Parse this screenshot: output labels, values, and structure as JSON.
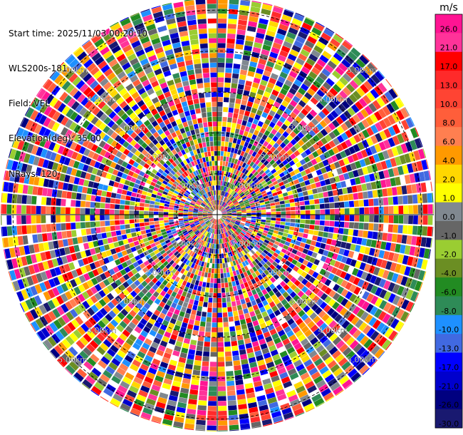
{
  "info": {
    "start_time": "Start time: 2025/11/03 00:20:10",
    "site": "WLS200s-181",
    "field": "Field: VEL",
    "elevation": "Elevation(deg): 35.00",
    "nrays": "NRays: 120"
  },
  "chart_data": {
    "type": "heatmap",
    "projection": "polar-ppi",
    "field": "VEL",
    "units": "m/s",
    "max_range_km": 5.3,
    "range_rings_km": [
      1,
      2,
      3,
      4,
      5
    ],
    "ring_labels": [
      "1.00km",
      "2.00km",
      "3.00km",
      "4.00km",
      "5.00km"
    ],
    "colorbar": {
      "title": "m/s",
      "tick_labels": [
        "26.0",
        "21.0",
        "17.0",
        "13.0",
        "10.0",
        "8.0",
        "6.0",
        "4.0",
        "2.0",
        "1.0",
        "0.0",
        "-1.0",
        "-2.0",
        "-4.0",
        "-6.0",
        "-8.0",
        "-10.0",
        "-13.0",
        "-17.0",
        "-21.0",
        "-26.0",
        "-30.0"
      ],
      "colors": [
        "#ff1493",
        "#ff3399",
        "#ff0000",
        "#ff2a2a",
        "#ff4433",
        "#ff5e3a",
        "#ff7f50",
        "#ff9900",
        "#ffd700",
        "#ffff00",
        "#808890",
        "#666666",
        "#9acd32",
        "#6b8e23",
        "#228b22",
        "#2e8b57",
        "#1e90ff",
        "#4169e1",
        "#0000ff",
        "#0000cd",
        "#000080",
        "#191970"
      ]
    }
  }
}
